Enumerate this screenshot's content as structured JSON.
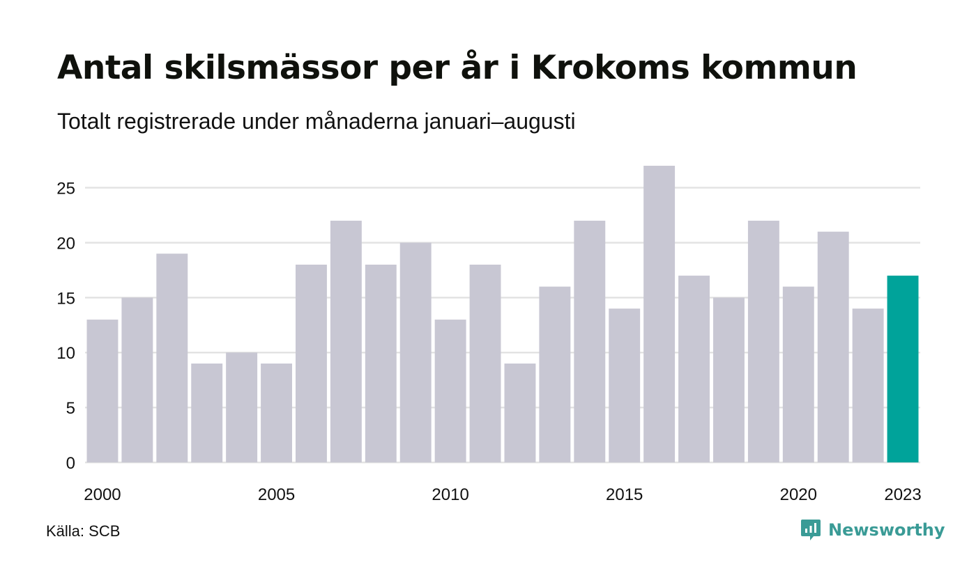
{
  "title": "Antal skilsmässor per år i Krokoms kommun",
  "subtitle": "Totalt registrerade under månaderna januari–augusti",
  "source": "Källa: SCB",
  "brand": {
    "name": "Newsworthy",
    "icon": "newsworthy-logo-icon",
    "color": "#3a9b96"
  },
  "colors": {
    "bar": "#c8c7d3",
    "highlight": "#00a39a",
    "grid": "#e3e3e3",
    "text": "#111111"
  },
  "chart_data": {
    "type": "bar",
    "title": "Antal skilsmässor per år i Krokoms kommun",
    "subtitle": "Totalt registrerade under månaderna januari–augusti",
    "xlabel": "",
    "ylabel": "",
    "categories": [
      "2000",
      "2001",
      "2002",
      "2003",
      "2004",
      "2005",
      "2006",
      "2007",
      "2008",
      "2009",
      "2010",
      "2011",
      "2012",
      "2013",
      "2014",
      "2015",
      "2016",
      "2017",
      "2018",
      "2019",
      "2020",
      "2021",
      "2022",
      "2023"
    ],
    "values": [
      13,
      15,
      19,
      9,
      10,
      9,
      18,
      22,
      18,
      20,
      13,
      18,
      9,
      16,
      22,
      14,
      27,
      17,
      15,
      22,
      16,
      21,
      14,
      17
    ],
    "highlight_index": 23,
    "x_tick_labels": [
      "2000",
      "2005",
      "2010",
      "2015",
      "2020",
      "2023"
    ],
    "y_ticks": [
      0,
      5,
      10,
      15,
      20,
      25
    ],
    "ylim": [
      0,
      27
    ],
    "grid": true
  }
}
